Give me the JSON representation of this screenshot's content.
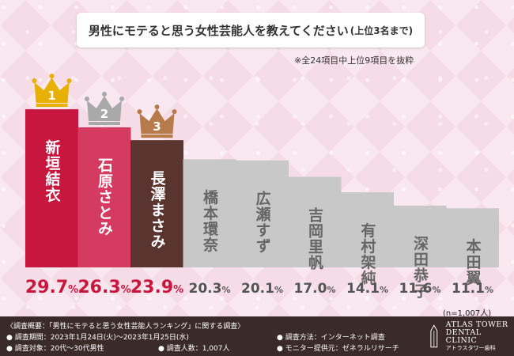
{
  "header": {
    "title": "男性にモテると思う女性芸能人を教えてください",
    "subtitle": "(上位3名まで)",
    "note": "※全24項目中上位9項目を抜粋"
  },
  "chart_data": {
    "type": "bar",
    "categories": [
      "新垣結衣",
      "石原さとみ",
      "長澤まさみ",
      "橋本環奈",
      "広瀬すず",
      "吉岡里帆",
      "有村架純",
      "深田恭子",
      "本田翼"
    ],
    "values": [
      29.7,
      26.3,
      23.9,
      20.3,
      20.1,
      17.0,
      14.1,
      11.6,
      11.1
    ],
    "value_labels": [
      "29.7",
      "26.3",
      "23.9",
      "20.3",
      "20.1",
      "17.0",
      "14.1",
      "11.6",
      "11.1"
    ],
    "unit": "%",
    "ranks": [
      "1",
      "2",
      "3"
    ],
    "colors": [
      "#c8173f",
      "#d53a61",
      "#5a3530",
      "#c8c8c8",
      "#c8c8c8",
      "#c8c8c8",
      "#c8c8c8",
      "#c8c8c8",
      "#c8c8c8"
    ],
    "crown_colors": [
      "#e8b000",
      "#a9a9a9",
      "#b77a4a"
    ]
  },
  "sample_size": "(n=1,007人)",
  "footer": {
    "overview": "〈調査概要：「男性にモテると思う女性芸能人ランキング」に関する調査〉",
    "period": "● 調査期間：2023年1月24日(火)〜2023年1月25日(水)",
    "target": "● 調査対象：20代〜30代男性",
    "count": "● 調査人数：1,007人",
    "method": "● 調査方法：インターネット調査",
    "provider": "● モニター提供元：ゼネラルリサーチ",
    "logo_line1": "ATLAS TOWER",
    "logo_line2": "DENTAL CLINIC",
    "logo_line3": "アトラスタワー歯科"
  }
}
